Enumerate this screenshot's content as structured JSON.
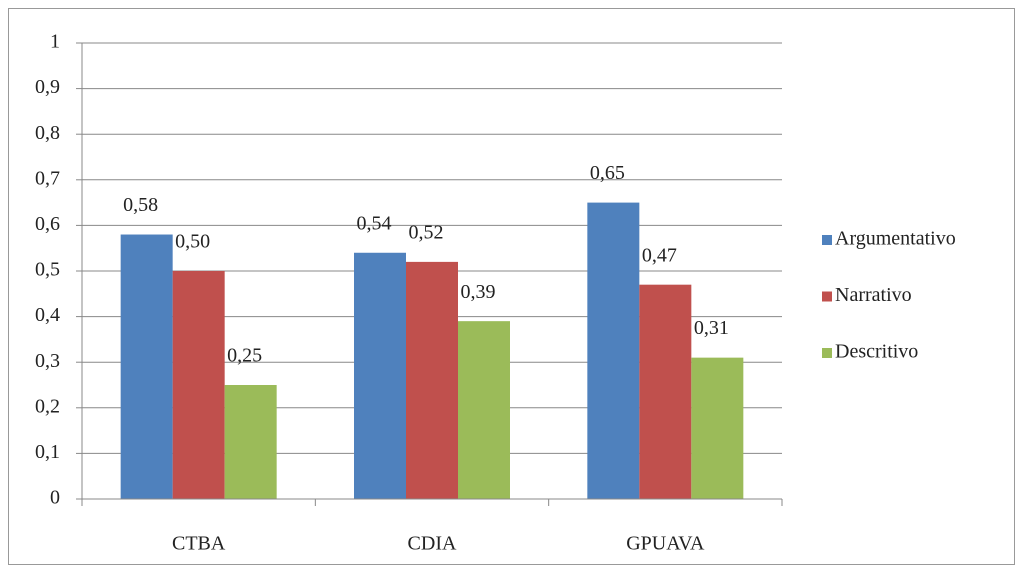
{
  "chart_data": {
    "type": "bar",
    "categories": [
      "CTBA",
      "CDIA",
      "GPUAVA"
    ],
    "series": [
      {
        "name": "Argumentativo",
        "color": "#4f81bd",
        "values": [
          0.58,
          0.54,
          0.65
        ],
        "value_labels": [
          "0,58",
          "0,54",
          "0,65"
        ]
      },
      {
        "name": "Narrativo",
        "color": "#c0504d",
        "values": [
          0.5,
          0.52,
          0.47
        ],
        "value_labels": [
          "0,50",
          "0,52",
          "0,47"
        ]
      },
      {
        "name": "Descritivo",
        "color": "#9bbb59",
        "values": [
          0.25,
          0.39,
          0.31
        ],
        "value_labels": [
          "0,25",
          "0,39",
          "0,31"
        ]
      }
    ],
    "ylim": [
      0,
      1
    ],
    "yticks": [
      0,
      {
        "value": 0.1,
        "label": "0,1"
      },
      {
        "value": 0.2,
        "label": "0,2"
      },
      {
        "value": 0.3,
        "label": "0,3"
      },
      {
        "value": 0.4,
        "label": "0,4"
      },
      {
        "value": 0.5,
        "label": "0,5"
      },
      {
        "value": 0.6,
        "label": "0,6"
      },
      {
        "value": 0.7,
        "label": "0,7"
      },
      {
        "value": 0.8,
        "label": "0,8"
      },
      {
        "value": 0.9,
        "label": "0,9"
      },
      1
    ],
    "grid": true,
    "legend": "right"
  }
}
